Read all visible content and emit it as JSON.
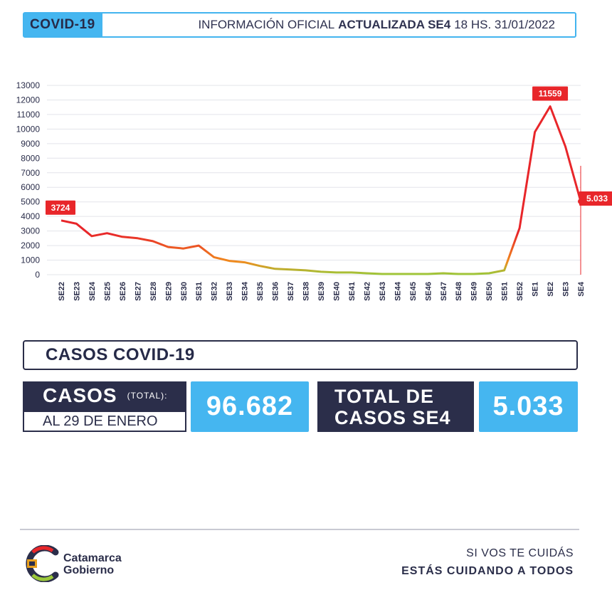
{
  "header": {
    "tag": "COVID-19",
    "info_prefix": "INFORMACIÓN OFICIAL",
    "info_bold": "ACTUALIZADA SE4",
    "info_suffix": "18 HS. 31/01/2022"
  },
  "chart_data": {
    "type": "line",
    "categories": [
      "SE22",
      "SE23",
      "SE24",
      "SE25",
      "SE26",
      "SE27",
      "SE28",
      "SE29",
      "SE30",
      "SE31",
      "SE32",
      "SE33",
      "SE34",
      "SE35",
      "SE36",
      "SE37",
      "SE38",
      "SE39",
      "SE40",
      "SE41",
      "SE42",
      "SE43",
      "SE44",
      "SE45",
      "SE46",
      "SE47",
      "SE48",
      "SE49",
      "SE50",
      "SE51",
      "SE52",
      "SE1",
      "SE2",
      "SE3",
      "SE4"
    ],
    "values": [
      3724,
      3500,
      2650,
      2850,
      2600,
      2500,
      2300,
      1900,
      1800,
      2000,
      1200,
      950,
      850,
      600,
      400,
      350,
      300,
      200,
      150,
      150,
      100,
      50,
      50,
      50,
      50,
      100,
      50,
      50,
      100,
      300,
      3200,
      9800,
      11559,
      8800,
      5033
    ],
    "ylim": [
      0,
      13000
    ],
    "yticks": [
      0,
      1000,
      2000,
      3000,
      4000,
      5000,
      6000,
      7000,
      8000,
      9000,
      10000,
      11000,
      12000,
      13000
    ],
    "grid": true,
    "annotations": [
      {
        "category": "SE22",
        "label": "3724"
      },
      {
        "category": "SE2",
        "label": "11559"
      },
      {
        "category": "SE4",
        "label": "5.033"
      }
    ]
  },
  "casos": {
    "title": "CASOS COVID-19",
    "total_label": "CASOS",
    "total_small": "(TOTAL):",
    "total_date": "AL 29 DE ENERO",
    "total_value": "96.682",
    "week_label_line1": "TOTAL DE",
    "week_label_line2": "CASOS SE4",
    "week_value": "5.033"
  },
  "footer": {
    "logo_line1": "Catamarca",
    "logo_line2": "Gobierno",
    "slogan_line1": "SI VOS TE CUIDÁS",
    "slogan_line2": "ESTÁS CUIDANDO A TODOS"
  },
  "colors": {
    "navy": "#2b2e4a",
    "blue": "#45b6f0",
    "line_red": "#e8262a",
    "line_orange": "#f08a1e",
    "line_green": "#9bc83a"
  }
}
